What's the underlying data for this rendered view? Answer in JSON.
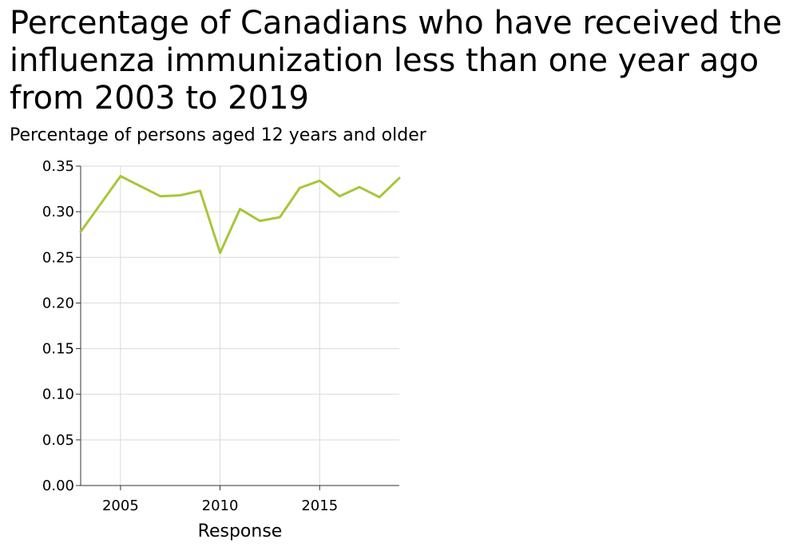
{
  "chart_data": {
    "type": "line",
    "title": "Percentage of Canadians who have received the influenza immunization less than one year ago from 2003 to 2019",
    "ylabel": "Percentage of persons aged 12 years and older",
    "xlabel": "Response",
    "x": [
      2003,
      2005,
      2007,
      2008,
      2009,
      2010,
      2011,
      2012,
      2013,
      2014,
      2015,
      2016,
      2017,
      2018,
      2019
    ],
    "series": [
      {
        "values": [
          0.278,
          0.339,
          0.317,
          0.318,
          0.323,
          0.255,
          0.303,
          0.29,
          0.294,
          0.326,
          0.334,
          0.317,
          0.327,
          0.316,
          0.337
        ],
        "color": "#a8c63a"
      }
    ],
    "xlim": [
      2003,
      2019
    ],
    "ylim": [
      0,
      0.35
    ],
    "x_ticks": [
      "2005",
      "2010",
      "2015"
    ],
    "y_ticks": [
      "0.00",
      "0.05",
      "0.10",
      "0.15",
      "0.20",
      "0.25",
      "0.30",
      "0.35"
    ],
    "grid": true,
    "colors": {
      "line": "#a8c63a",
      "grid": "#d9d9d9",
      "axis": "#333333"
    }
  }
}
